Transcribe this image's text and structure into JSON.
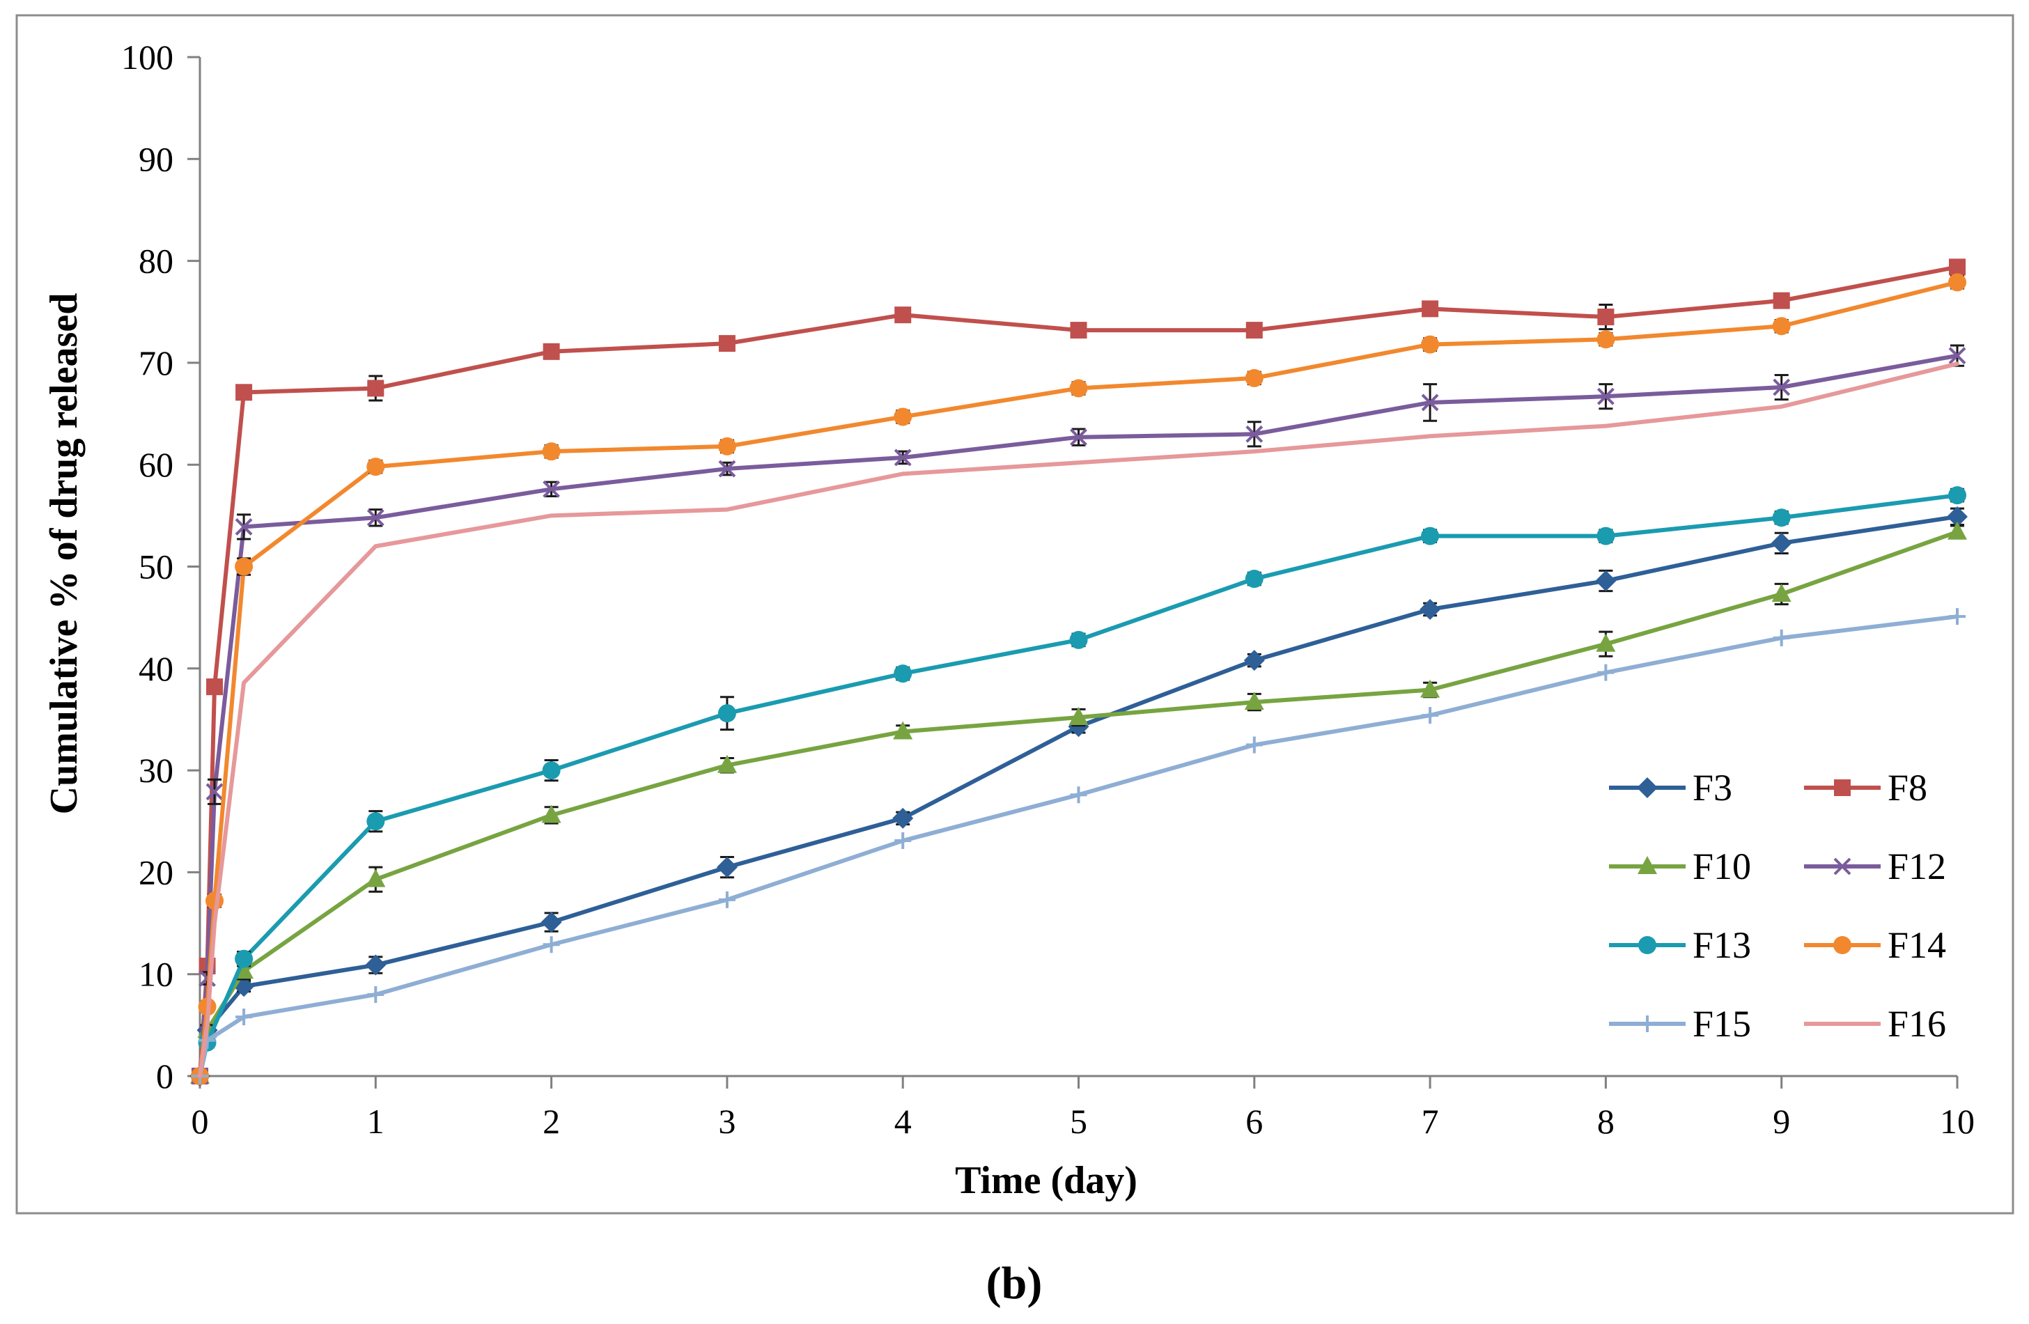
{
  "chart_data": {
    "type": "line",
    "title": "",
    "xlabel": "Time (day)",
    "ylabel": "Cumulative % of drug released",
    "xlim": [
      0,
      10
    ],
    "ylim": [
      0,
      100
    ],
    "xticks": [
      0,
      1,
      2,
      3,
      4,
      5,
      6,
      7,
      8,
      9,
      10
    ],
    "yticks": [
      0,
      10,
      20,
      30,
      40,
      50,
      60,
      70,
      80,
      90,
      100
    ],
    "grid": false,
    "legend_position": "bottom-right",
    "caption": "(b)",
    "series": [
      {
        "name": "F3",
        "color": "#2e5f97",
        "marker": "diamond",
        "x": [
          0,
          0.0417,
          0.25,
          1,
          2,
          3,
          4,
          5,
          6,
          7,
          8,
          9,
          10
        ],
        "y": [
          0,
          4.5,
          8.8,
          10.9,
          15.1,
          20.5,
          25.3,
          34.3,
          40.8,
          45.8,
          48.6,
          52.3,
          54.9
        ],
        "err": [
          0,
          0.5,
          0.5,
          0.8,
          0.9,
          1.0,
          0.6,
          0.6,
          0.6,
          0.6,
          1.0,
          1.0,
          0.8
        ]
      },
      {
        "name": "F8",
        "color": "#c0504d",
        "marker": "square",
        "x": [
          0,
          0.0417,
          0.0833,
          0.25,
          1,
          2,
          3,
          4,
          5,
          6,
          7,
          8,
          9,
          10
        ],
        "y": [
          0,
          10.8,
          38.2,
          67.1,
          67.5,
          71.1,
          71.9,
          74.7,
          73.2,
          73.2,
          75.3,
          74.5,
          76.1,
          79.4
        ],
        "err": [
          0,
          0.5,
          0.5,
          0.6,
          1.2,
          0.6,
          0.6,
          0.6,
          0.6,
          0.6,
          0.6,
          1.2,
          0.6,
          0.6
        ]
      },
      {
        "name": "F10",
        "color": "#77a441",
        "marker": "triangle",
        "x": [
          0,
          0.0417,
          0.25,
          1,
          2,
          3,
          4,
          5,
          6,
          7,
          8,
          9,
          10
        ],
        "y": [
          0,
          4.5,
          10.3,
          19.3,
          25.6,
          30.5,
          33.8,
          35.2,
          36.7,
          37.9,
          42.4,
          47.3,
          53.4
        ],
        "err": [
          0,
          0.5,
          0.8,
          1.2,
          0.8,
          0.7,
          0.6,
          0.8,
          0.8,
          0.7,
          1.2,
          1.0,
          0.6
        ]
      },
      {
        "name": "F12",
        "color": "#7a5c9c",
        "marker": "x",
        "x": [
          0,
          0.0417,
          0.0833,
          0.25,
          1,
          2,
          3,
          4,
          5,
          6,
          7,
          8,
          9,
          10
        ],
        "y": [
          0,
          9.6,
          27.9,
          53.9,
          54.8,
          57.6,
          59.6,
          60.7,
          62.7,
          63.0,
          66.1,
          66.7,
          67.6,
          70.7
        ],
        "err": [
          0,
          0.6,
          1.2,
          1.2,
          0.8,
          0.7,
          0.6,
          0.6,
          0.8,
          1.2,
          1.8,
          1.2,
          1.2,
          1.0
        ]
      },
      {
        "name": "F13",
        "color": "#1a9bb0",
        "marker": "circle",
        "x": [
          0,
          0.0417,
          0.25,
          1,
          2,
          3,
          4,
          5,
          6,
          7,
          8,
          9,
          10
        ],
        "y": [
          0,
          3.3,
          11.5,
          25.0,
          30.0,
          35.6,
          39.5,
          42.8,
          48.8,
          53.0,
          53.0,
          54.8,
          57.0
        ],
        "err": [
          0,
          0.5,
          0.7,
          1.0,
          1.0,
          1.6,
          0.6,
          0.6,
          0.6,
          0.6,
          0.6,
          0.6,
          0.6
        ]
      },
      {
        "name": "F14",
        "color": "#f2882e",
        "marker": "circle",
        "x": [
          0,
          0.0417,
          0.0833,
          0.25,
          1,
          2,
          3,
          4,
          5,
          6,
          7,
          8,
          9,
          10
        ],
        "y": [
          0,
          6.8,
          17.2,
          50.0,
          59.8,
          61.3,
          61.8,
          64.7,
          67.5,
          68.5,
          71.8,
          72.3,
          73.6,
          77.9
        ],
        "err": [
          0,
          0.5,
          0.6,
          0.8,
          0.6,
          0.6,
          0.6,
          0.6,
          0.6,
          0.6,
          0.6,
          0.6,
          0.6,
          0.6
        ]
      },
      {
        "name": "F15",
        "color": "#8eaed4",
        "marker": "plus",
        "x": [
          0,
          0.0417,
          0.25,
          1,
          2,
          3,
          4,
          5,
          6,
          7,
          8,
          9,
          10
        ],
        "y": [
          0,
          3.5,
          5.8,
          8.0,
          12.9,
          17.3,
          23.1,
          27.6,
          32.5,
          35.4,
          39.6,
          43.0,
          45.1
        ],
        "err": [
          0,
          0,
          0,
          0,
          0,
          0,
          0,
          0,
          0,
          0,
          0,
          0,
          0
        ]
      },
      {
        "name": "F16",
        "color": "#e6989a",
        "marker": "none",
        "x": [
          0,
          0.0417,
          0.0833,
          0.25,
          1,
          2,
          3,
          4,
          5,
          6,
          7,
          8,
          9,
          10
        ],
        "y": [
          0,
          5.0,
          15.0,
          38.6,
          52.0,
          55.0,
          55.6,
          59.1,
          60.2,
          61.3,
          62.8,
          63.8,
          65.7,
          69.9
        ],
        "err": [
          0,
          0,
          0,
          0,
          0,
          0,
          0,
          0,
          0,
          0,
          0,
          0,
          0,
          0
        ]
      }
    ]
  }
}
